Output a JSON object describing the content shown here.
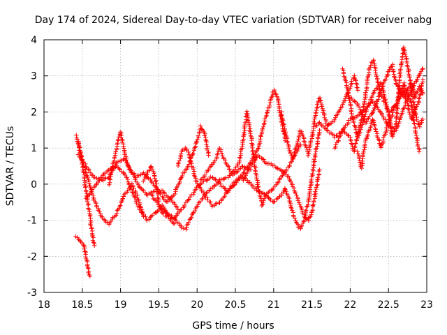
{
  "chart_data": {
    "type": "scatter",
    "title": "Day 174 of 2024, Sidereal Day-to-day VTEC variation (SDTVAR) for receiver nabg",
    "xlabel": "GPS time / hours",
    "ylabel": "SDTVAR / TECUs",
    "xlim": [
      18,
      23
    ],
    "ylim": [
      -3,
      4
    ],
    "xticks": [
      18,
      18.5,
      19,
      19.5,
      20,
      20.5,
      21,
      21.5,
      22,
      22.5,
      23
    ],
    "xtick_labels": [
      "18",
      "18.5",
      "19",
      "19.5",
      "20",
      "20.5",
      "21",
      "21.5",
      "22",
      "22.5",
      "23"
    ],
    "yticks": [
      -3,
      -2,
      -1,
      0,
      1,
      2,
      3,
      4
    ],
    "ytick_labels": [
      "-3",
      "-2",
      "-1",
      "0",
      "1",
      "2",
      "3",
      "4"
    ],
    "grid": true,
    "marker": "+",
    "color": "#ff0000",
    "series": [
      {
        "name": "SDTVAR",
        "note": "Many overlapping per-satellite tracks; representative waypoints per track (x in hours, y in TECU), densified along segments for drawing.",
        "tracks": [
          [
            [
              18.42,
              1.35
            ],
            [
              18.48,
              0.8
            ],
            [
              18.55,
              0.3
            ],
            [
              18.65,
              -0.4
            ],
            [
              18.75,
              -0.9
            ],
            [
              18.85,
              -1.1
            ],
            [
              18.95,
              -0.8
            ],
            [
              19.05,
              -0.3
            ],
            [
              19.15,
              0.0
            ],
            [
              19.25,
              -0.5
            ],
            [
              19.3,
              -0.9
            ]
          ],
          [
            [
              18.42,
              -1.45
            ],
            [
              18.48,
              -1.6
            ],
            [
              18.52,
              -1.7
            ],
            [
              18.55,
              -2.0
            ],
            [
              18.58,
              -2.4
            ],
            [
              18.6,
              -2.55
            ]
          ],
          [
            [
              18.45,
              1.2
            ],
            [
              18.5,
              0.6
            ],
            [
              18.55,
              -0.2
            ],
            [
              18.6,
              -0.9
            ],
            [
              18.63,
              -1.4
            ],
            [
              18.66,
              -1.7
            ]
          ],
          [
            [
              18.45,
              0.8
            ],
            [
              18.55,
              0.5
            ],
            [
              18.65,
              0.2
            ],
            [
              18.75,
              0.1
            ],
            [
              18.85,
              0.2
            ],
            [
              18.95,
              0.6
            ],
            [
              19.05,
              0.7
            ],
            [
              19.15,
              0.3
            ],
            [
              19.25,
              -0.1
            ],
            [
              19.35,
              -0.3
            ],
            [
              19.45,
              -0.2
            ],
            [
              19.55,
              -0.2
            ],
            [
              19.65,
              -0.4
            ],
            [
              19.75,
              -0.7
            ]
          ],
          [
            [
              18.55,
              -0.4
            ],
            [
              18.65,
              -0.1
            ],
            [
              18.75,
              0.2
            ],
            [
              18.85,
              0.4
            ],
            [
              18.95,
              0.5
            ],
            [
              19.05,
              0.3
            ],
            [
              19.15,
              -0.2
            ],
            [
              19.25,
              -0.7
            ],
            [
              19.35,
              -1.0
            ],
            [
              19.45,
              -0.8
            ],
            [
              19.55,
              -0.6
            ],
            [
              19.65,
              -1.0
            ],
            [
              19.7,
              -1.1
            ]
          ],
          [
            [
              18.85,
              0.0
            ],
            [
              18.9,
              0.5
            ],
            [
              18.95,
              1.0
            ],
            [
              19.0,
              1.45
            ],
            [
              19.05,
              0.9
            ],
            [
              19.1,
              0.5
            ],
            [
              19.2,
              0.2
            ],
            [
              19.3,
              0.3
            ],
            [
              19.4,
              0.1
            ],
            [
              19.5,
              -0.2
            ],
            [
              19.6,
              -0.5
            ],
            [
              19.7,
              -0.3
            ],
            [
              19.8,
              0.2
            ],
            [
              19.9,
              0.6
            ],
            [
              20.0,
              1.2
            ],
            [
              20.05,
              1.6
            ],
            [
              20.1,
              1.4
            ],
            [
              20.15,
              0.8
            ]
          ],
          [
            [
              19.3,
              0.1
            ],
            [
              19.4,
              0.5
            ],
            [
              19.45,
              0.2
            ],
            [
              19.5,
              -0.5
            ],
            [
              19.55,
              -0.8
            ],
            [
              19.6,
              -0.9
            ],
            [
              19.7,
              -0.95
            ],
            [
              19.8,
              -1.2
            ],
            [
              19.85,
              -1.25
            ],
            [
              19.9,
              -1.0
            ],
            [
              20.0,
              -0.6
            ],
            [
              20.1,
              -0.3
            ],
            [
              20.2,
              -0.1
            ],
            [
              20.3,
              0.1
            ],
            [
              20.4,
              0.2
            ],
            [
              20.5,
              0.3
            ],
            [
              20.6,
              0.5
            ],
            [
              20.7,
              0.4
            ]
          ],
          [
            [
              19.4,
              -0.3
            ],
            [
              19.5,
              -0.6
            ],
            [
              19.6,
              -0.8
            ],
            [
              19.7,
              -0.95
            ],
            [
              19.8,
              -0.7
            ],
            [
              19.9,
              -0.4
            ],
            [
              20.0,
              -0.1
            ],
            [
              20.1,
              0.1
            ],
            [
              20.2,
              0.2
            ],
            [
              20.3,
              0.0
            ],
            [
              20.4,
              -0.2
            ],
            [
              20.5,
              0.0
            ],
            [
              20.6,
              0.3
            ],
            [
              20.7,
              0.6
            ],
            [
              20.8,
              1.0
            ],
            [
              20.85,
              1.5
            ],
            [
              20.9,
              1.9
            ],
            [
              20.95,
              2.2
            ],
            [
              21.0,
              2.6
            ],
            [
              21.05,
              2.4
            ],
            [
              21.1,
              1.8
            ],
            [
              21.15,
              1.2
            ]
          ],
          [
            [
              19.75,
              0.5
            ],
            [
              19.8,
              0.9
            ],
            [
              19.85,
              1.0
            ],
            [
              19.9,
              0.8
            ],
            [
              19.95,
              0.4
            ],
            [
              20.0,
              0.0
            ],
            [
              20.1,
              -0.3
            ],
            [
              20.2,
              -0.6
            ],
            [
              20.3,
              -0.5
            ],
            [
              20.4,
              -0.2
            ],
            [
              20.5,
              0.1
            ],
            [
              20.6,
              0.2
            ],
            [
              20.7,
              0.0
            ],
            [
              20.8,
              -0.2
            ],
            [
              20.9,
              -0.3
            ],
            [
              21.0,
              -0.1
            ],
            [
              21.1,
              0.2
            ],
            [
              21.2,
              0.5
            ],
            [
              21.3,
              0.9
            ],
            [
              21.35,
              1.1
            ]
          ],
          [
            [
              20.05,
              0.1
            ],
            [
              20.15,
              0.4
            ],
            [
              20.25,
              0.7
            ],
            [
              20.3,
              1.0
            ],
            [
              20.35,
              0.7
            ],
            [
              20.45,
              0.3
            ],
            [
              20.55,
              0.6
            ],
            [
              20.6,
              1.2
            ],
            [
              20.65,
              2.0
            ],
            [
              20.7,
              1.4
            ],
            [
              20.75,
              0.6
            ],
            [
              20.8,
              -0.1
            ],
            [
              20.85,
              -0.6
            ],
            [
              20.9,
              -0.3
            ]
          ],
          [
            [
              20.6,
              0.1
            ],
            [
              20.7,
              0.5
            ],
            [
              20.8,
              0.8
            ],
            [
              20.9,
              0.6
            ],
            [
              21.0,
              0.5
            ],
            [
              21.1,
              0.4
            ],
            [
              21.2,
              0.2
            ],
            [
              21.3,
              -0.3
            ],
            [
              21.35,
              -0.6
            ],
            [
              21.4,
              -0.9
            ],
            [
              21.45,
              -1.0
            ],
            [
              21.5,
              -0.8
            ],
            [
              21.55,
              -0.2
            ],
            [
              21.6,
              0.4
            ]
          ],
          [
            [
              20.9,
              -0.3
            ],
            [
              21.0,
              -0.5
            ],
            [
              21.1,
              -0.3
            ],
            [
              21.15,
              -0.1
            ],
            [
              21.2,
              -0.4
            ],
            [
              21.25,
              -0.8
            ],
            [
              21.3,
              -1.1
            ],
            [
              21.35,
              -1.25
            ],
            [
              21.4,
              -1.0
            ],
            [
              21.45,
              -0.5
            ],
            [
              21.5,
              0.2
            ],
            [
              21.55,
              0.9
            ],
            [
              21.6,
              1.5
            ]
          ],
          [
            [
              21.1,
              2.0
            ],
            [
              21.15,
              1.5
            ],
            [
              21.2,
              1.0
            ],
            [
              21.25,
              0.7
            ],
            [
              21.3,
              1.1
            ],
            [
              21.35,
              1.5
            ],
            [
              21.4,
              1.2
            ],
            [
              21.45,
              0.8
            ],
            [
              21.5,
              1.3
            ],
            [
              21.55,
              2.0
            ],
            [
              21.6,
              2.4
            ],
            [
              21.65,
              2.0
            ],
            [
              21.7,
              1.6
            ],
            [
              21.8,
              1.8
            ],
            [
              21.9,
              2.2
            ],
            [
              22.0,
              2.7
            ],
            [
              22.05,
              3.0
            ],
            [
              22.1,
              2.6
            ]
          ],
          [
            [
              21.55,
              1.6
            ],
            [
              21.6,
              1.7
            ],
            [
              21.7,
              1.5
            ],
            [
              21.8,
              1.3
            ],
            [
              21.9,
              1.5
            ],
            [
              22.0,
              1.8
            ],
            [
              22.1,
              1.9
            ],
            [
              22.2,
              2.1
            ],
            [
              22.3,
              2.3
            ],
            [
              22.4,
              2.0
            ],
            [
              22.5,
              1.6
            ],
            [
              22.6,
              1.5
            ],
            [
              22.7,
              2.1
            ],
            [
              22.8,
              2.6
            ],
            [
              22.9,
              3.0
            ],
            [
              22.95,
              3.2
            ]
          ],
          [
            [
              21.8,
              1.0
            ],
            [
              21.9,
              1.5
            ],
            [
              22.0,
              1.3
            ],
            [
              22.05,
              0.9
            ],
            [
              22.1,
              1.4
            ],
            [
              22.15,
              1.8
            ],
            [
              22.2,
              2.5
            ],
            [
              22.25,
              3.2
            ],
            [
              22.3,
              3.45
            ],
            [
              22.35,
              3.0
            ],
            [
              22.4,
              2.5
            ],
            [
              22.5,
              2.0
            ],
            [
              22.55,
              1.3
            ],
            [
              22.6,
              1.7
            ],
            [
              22.65,
              3.0
            ],
            [
              22.7,
              3.8
            ],
            [
              22.75,
              3.3
            ],
            [
              22.8,
              2.6
            ],
            [
              22.85,
              2.0
            ],
            [
              22.9,
              1.6
            ],
            [
              22.95,
              1.8
            ]
          ],
          [
            [
              21.9,
              3.2
            ],
            [
              21.95,
              2.8
            ],
            [
              22.0,
              2.2
            ],
            [
              22.05,
              1.7
            ],
            [
              22.1,
              1.3
            ],
            [
              22.15,
              1.6
            ],
            [
              22.2,
              2.0
            ],
            [
              22.3,
              2.5
            ],
            [
              22.4,
              2.8
            ],
            [
              22.45,
              2.4
            ],
            [
              22.5,
              2.0
            ],
            [
              22.6,
              2.2
            ],
            [
              22.7,
              2.8
            ],
            [
              22.8,
              2.2
            ],
            [
              22.85,
              1.5
            ],
            [
              22.9,
              0.9
            ]
          ],
          [
            [
              22.0,
              2.4
            ],
            [
              22.1,
              2.2
            ],
            [
              22.2,
              1.7
            ],
            [
              22.3,
              2.0
            ],
            [
              22.4,
              2.6
            ],
            [
              22.5,
              3.1
            ],
            [
              22.55,
              3.3
            ],
            [
              22.6,
              2.8
            ],
            [
              22.7,
              2.4
            ],
            [
              22.8,
              2.8
            ],
            [
              22.85,
              2.4
            ],
            [
              22.9,
              2.7
            ],
            [
              22.95,
              2.5
            ]
          ],
          [
            [
              22.1,
              0.9
            ],
            [
              22.15,
              0.45
            ],
            [
              22.2,
              1.2
            ],
            [
              22.3,
              1.8
            ],
            [
              22.4,
              1.0
            ],
            [
              22.5,
              1.7
            ],
            [
              22.6,
              2.2
            ],
            [
              22.7,
              2.6
            ],
            [
              22.8,
              1.8
            ],
            [
              22.9,
              2.3
            ],
            [
              22.95,
              2.9
            ]
          ]
        ]
      }
    ]
  }
}
